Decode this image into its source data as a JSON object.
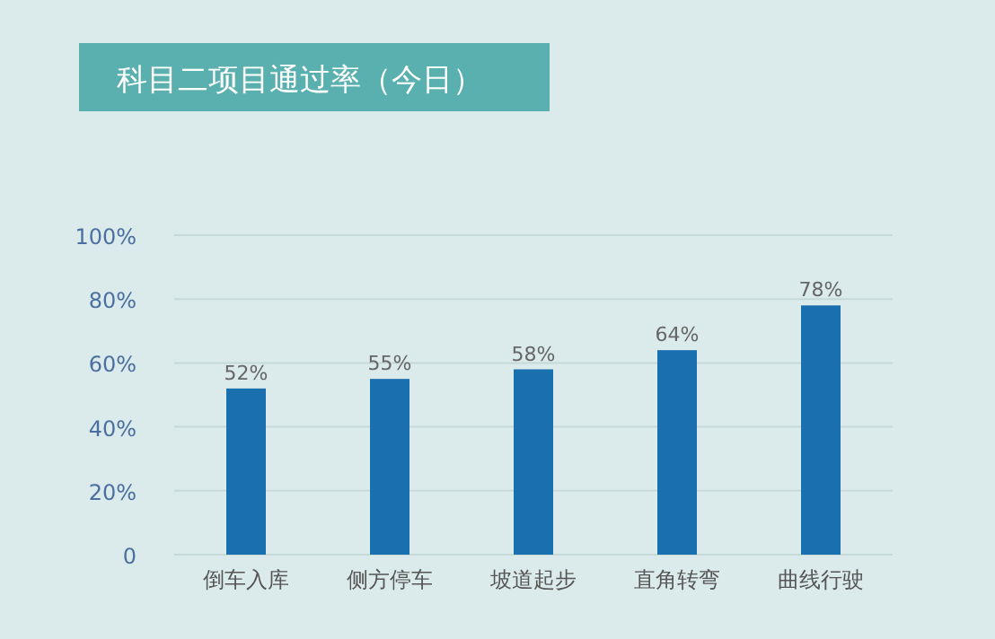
{
  "chart_data": {
    "type": "bar",
    "title": "科目二项目通过率（今日）",
    "categories": [
      "倒车入库",
      "侧方停车",
      "坡道起步",
      "直角转弯",
      "曲线行驶"
    ],
    "values": [
      52,
      55,
      58,
      64,
      78
    ],
    "value_labels": [
      "52%",
      "55%",
      "58%",
      "64%",
      "78%"
    ],
    "color": "#1a6faf",
    "ylim": [
      0,
      100
    ],
    "yticks": [
      0,
      {
        "value": 20,
        "label": "20%"
      },
      {
        "value": 40,
        "label": "40%"
      },
      {
        "value": 60,
        "label": "60%"
      },
      {
        "value": 80,
        "label": "80%"
      },
      {
        "value": 100,
        "label": "100%"
      }
    ],
    "grid": "y"
  }
}
